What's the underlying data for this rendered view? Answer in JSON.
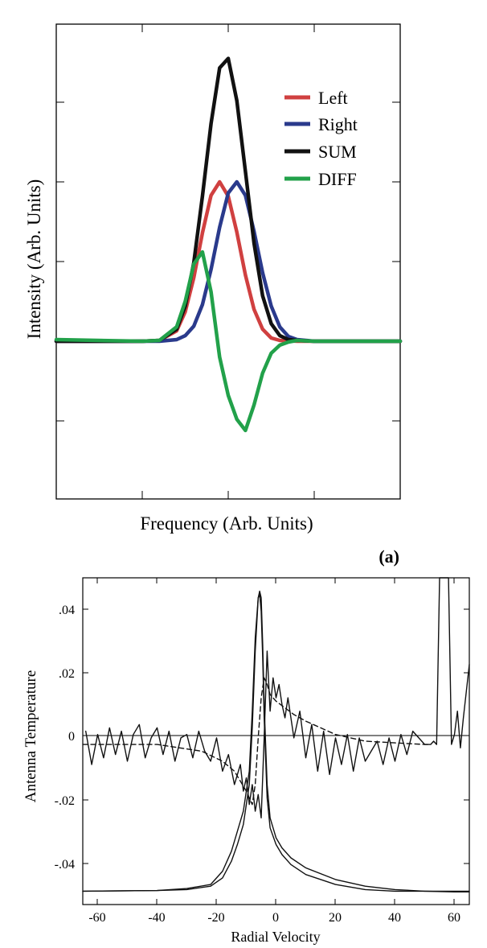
{
  "chart_data": [
    {
      "type": "line",
      "panel_label": "(a)",
      "xlabel": "Frequency (Arb. Units)",
      "ylabel": "Intensity  (Arb. Units)",
      "xlim": [
        0,
        4
      ],
      "ylim": [
        -2,
        4
      ],
      "grid": false,
      "legend_position": "top-right",
      "series": [
        {
          "name": "Left",
          "color": "#d04040",
          "x": [
            0,
            1,
            1.2,
            1.4,
            1.5,
            1.6,
            1.7,
            1.8,
            1.9,
            2.0,
            2.1,
            2.2,
            2.3,
            2.4,
            2.5,
            2.6,
            2.8,
            3.0,
            4
          ],
          "y": [
            0,
            0,
            0.01,
            0.13,
            0.37,
            0.8,
            1.36,
            1.83,
            2.0,
            1.82,
            1.37,
            0.83,
            0.4,
            0.15,
            0.04,
            0.01,
            0,
            0,
            0
          ]
        },
        {
          "name": "Right",
          "color": "#2a3a8c",
          "x": [
            0,
            1.2,
            1.4,
            1.5,
            1.6,
            1.7,
            1.8,
            1.9,
            2.0,
            2.1,
            2.2,
            2.3,
            2.4,
            2.5,
            2.6,
            2.7,
            2.8,
            3.0,
            4
          ],
          "y": [
            0,
            0,
            0.02,
            0.07,
            0.19,
            0.46,
            0.9,
            1.43,
            1.86,
            2.0,
            1.83,
            1.38,
            0.86,
            0.44,
            0.18,
            0.06,
            0.02,
            0,
            0
          ]
        },
        {
          "name": "SUM",
          "color": "#111111",
          "x": [
            0,
            1,
            1.2,
            1.4,
            1.5,
            1.6,
            1.7,
            1.8,
            1.9,
            2.0,
            2.1,
            2.2,
            2.3,
            2.4,
            2.5,
            2.6,
            2.7,
            2.8,
            3.0,
            4
          ],
          "y": [
            0,
            0,
            0.01,
            0.15,
            0.44,
            0.99,
            1.82,
            2.73,
            3.43,
            3.55,
            3.02,
            2.13,
            1.23,
            0.57,
            0.22,
            0.07,
            0.02,
            0.01,
            0,
            0
          ]
        },
        {
          "name": "DIFF",
          "color": "#22a14a",
          "x": [
            0,
            1.0,
            1.2,
            1.4,
            1.5,
            1.6,
            1.7,
            1.8,
            1.9,
            2.0,
            2.1,
            2.2,
            2.3,
            2.4,
            2.5,
            2.6,
            2.7,
            2.8,
            3.0,
            4
          ],
          "y": [
            0.02,
            0,
            0.01,
            0.18,
            0.5,
            0.97,
            1.12,
            0.62,
            -0.2,
            -0.68,
            -0.98,
            -1.12,
            -0.8,
            -0.4,
            -0.15,
            -0.05,
            -0.01,
            0.01,
            0,
            0
          ]
        }
      ]
    },
    {
      "type": "line",
      "xlabel": "Radial Velocity",
      "ylabel": "Antenna Temperature",
      "xlim": [
        -65,
        65
      ],
      "ylim": [
        -0.048,
        0.05
      ],
      "xticks": [
        "-60",
        "-40",
        "-20",
        "0",
        "20",
        "40",
        "60"
      ],
      "yticks": [
        ".04",
        ".02",
        "0",
        "-.02",
        "-.04"
      ],
      "grid": false,
      "zero_line": 0,
      "series": [
        {
          "name": "",
          "x": [
            -65,
            -40,
            -30,
            -22,
            -18,
            -15,
            -13,
            -11,
            -9,
            -8,
            -7,
            -6,
            -5.5,
            -5,
            -4.5,
            -4,
            -3,
            -2,
            0,
            2,
            5,
            10,
            20,
            30,
            40,
            50,
            60,
            65
          ],
          "y": [
            -0.044,
            -0.0438,
            -0.0435,
            -0.0425,
            -0.04,
            -0.035,
            -0.03,
            -0.024,
            -0.012,
            0.005,
            0.028,
            0.044,
            0.046,
            0.044,
            0.03,
            0.012,
            -0.012,
            -0.022,
            -0.028,
            -0.031,
            -0.034,
            -0.037,
            -0.0405,
            -0.0425,
            -0.0435,
            -0.044,
            -0.044,
            -0.044
          ]
        },
        {
          "name": "",
          "x": [
            -65,
            -40,
            -30,
            -22,
            -18,
            -15,
            -13,
            -11,
            -9,
            -8,
            -7,
            -6,
            -5.5,
            -5,
            -4.5,
            -4,
            -3,
            -2,
            0,
            2,
            5,
            10,
            20,
            30,
            40,
            50,
            60,
            65
          ],
          "y": [
            -0.044,
            -0.0438,
            -0.0432,
            -0.042,
            -0.038,
            -0.032,
            -0.026,
            -0.02,
            -0.008,
            0.01,
            0.032,
            0.044,
            0.045,
            0.04,
            0.026,
            0.008,
            -0.016,
            -0.025,
            -0.03,
            -0.033,
            -0.036,
            -0.039,
            -0.042,
            -0.0435,
            -0.044,
            -0.044,
            -0.0442,
            -0.0442
          ]
        },
        {
          "name": "",
          "x": [
            -65,
            -40,
            -25,
            -18,
            -14,
            -12,
            -10,
            -8,
            -7,
            -6,
            -5,
            -4,
            -3,
            -2,
            0,
            3,
            6,
            10,
            15,
            20,
            30,
            40,
            50,
            52
          ],
          "y": [
            0,
            0,
            -0.002,
            -0.005,
            -0.008,
            -0.011,
            -0.014,
            -0.018,
            -0.012,
            0.002,
            0.014,
            0.02,
            0.018,
            0.015,
            0.013,
            0.011,
            0.009,
            0.007,
            0.005,
            0.003,
            0.001,
            0.0005,
            0,
            0
          ],
          "style": "dashed"
        },
        {
          "name": "",
          "x": [
            -64,
            -62,
            -60,
            -58,
            -56,
            -54,
            -52,
            -50,
            -48,
            -46,
            -44,
            -42,
            -40,
            -38,
            -36,
            -34,
            -32,
            -30,
            -28,
            -26,
            -24,
            -22,
            -20,
            -18,
            -16,
            -14,
            -12,
            -11,
            -10,
            -9,
            -8,
            -7,
            -6,
            -5,
            -4,
            -3,
            -2,
            -1,
            0,
            1,
            2,
            3,
            4,
            6,
            8,
            10,
            12,
            14,
            16,
            18,
            20,
            22,
            24,
            26,
            28,
            30,
            32,
            34,
            36,
            38,
            40,
            42,
            44,
            46,
            48,
            50,
            52,
            53,
            54,
            55,
            56,
            57,
            58,
            59,
            60,
            61,
            62,
            63,
            64,
            65
          ],
          "y": [
            0.004,
            -0.006,
            0.003,
            -0.004,
            0.005,
            -0.003,
            0.004,
            -0.005,
            0.003,
            0.006,
            -0.004,
            0.002,
            0.005,
            -0.003,
            0.004,
            -0.005,
            0.002,
            0.003,
            -0.004,
            0.004,
            -0.002,
            -0.005,
            0.002,
            -0.008,
            -0.003,
            -0.012,
            -0.006,
            -0.014,
            -0.01,
            -0.018,
            -0.012,
            -0.02,
            -0.015,
            -0.022,
            0.002,
            0.028,
            0.01,
            0.02,
            0.014,
            0.018,
            0.012,
            0.008,
            0.014,
            0.002,
            0.01,
            -0.004,
            0.006,
            -0.008,
            0.004,
            -0.009,
            0.002,
            -0.006,
            0.003,
            -0.008,
            0.002,
            -0.005,
            -0.002,
            0.001,
            -0.006,
            0.002,
            -0.005,
            0.003,
            -0.003,
            0.004,
            0.002,
            0.0,
            0.0,
            0.001,
            0.0,
            0.05,
            0.05,
            0.05,
            0.05,
            0.0,
            0.003,
            0.01,
            -0.001,
            0.008,
            0.016,
            0.024
          ]
        }
      ]
    }
  ]
}
